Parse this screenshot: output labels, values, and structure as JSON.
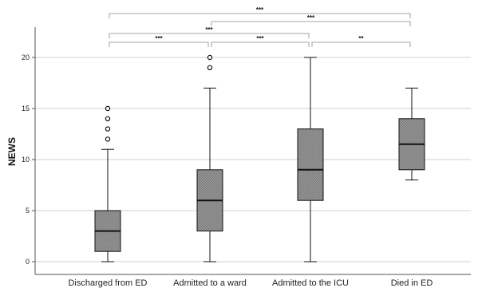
{
  "chart_data": {
    "type": "box",
    "ylabel": "NEWS",
    "xlabel": "",
    "ylim": [
      0,
      22
    ],
    "yticks": [
      0,
      5,
      10,
      15,
      20
    ],
    "grid": "horizontal",
    "categories": [
      "Discharged from ED",
      "Admitted to a ward",
      "Admitted to the ICU",
      "Died in ED"
    ],
    "boxes": [
      {
        "category": "Discharged from ED",
        "min": 0,
        "q1": 1,
        "median": 3,
        "q3": 5,
        "max": 11,
        "outliers": [
          12,
          13,
          14,
          15
        ]
      },
      {
        "category": "Admitted to a ward",
        "min": 0,
        "q1": 3,
        "median": 6,
        "q3": 9,
        "max": 17,
        "outliers": [
          19,
          20
        ]
      },
      {
        "category": "Admitted to the ICU",
        "min": 0,
        "q1": 6,
        "median": 9,
        "q3": 13,
        "max": 20,
        "outliers": []
      },
      {
        "category": "Died in ED",
        "min": 8,
        "q1": 9,
        "median": 11.5,
        "q3": 14,
        "max": 17,
        "outliers": []
      }
    ],
    "significance": [
      {
        "from": 0,
        "to": 1,
        "label": "***"
      },
      {
        "from": 1,
        "to": 2,
        "label": "***"
      },
      {
        "from": 2,
        "to": 3,
        "label": "**"
      },
      {
        "from": 0,
        "to": 2,
        "label": "***"
      },
      {
        "from": 1,
        "to": 3,
        "label": "***"
      },
      {
        "from": 0,
        "to": 3,
        "label": "***"
      }
    ],
    "colors": {
      "box_fill": "#8c8c8c",
      "grid": "#d0d0d0",
      "axis": "#555555",
      "stroke": "#111111"
    }
  }
}
